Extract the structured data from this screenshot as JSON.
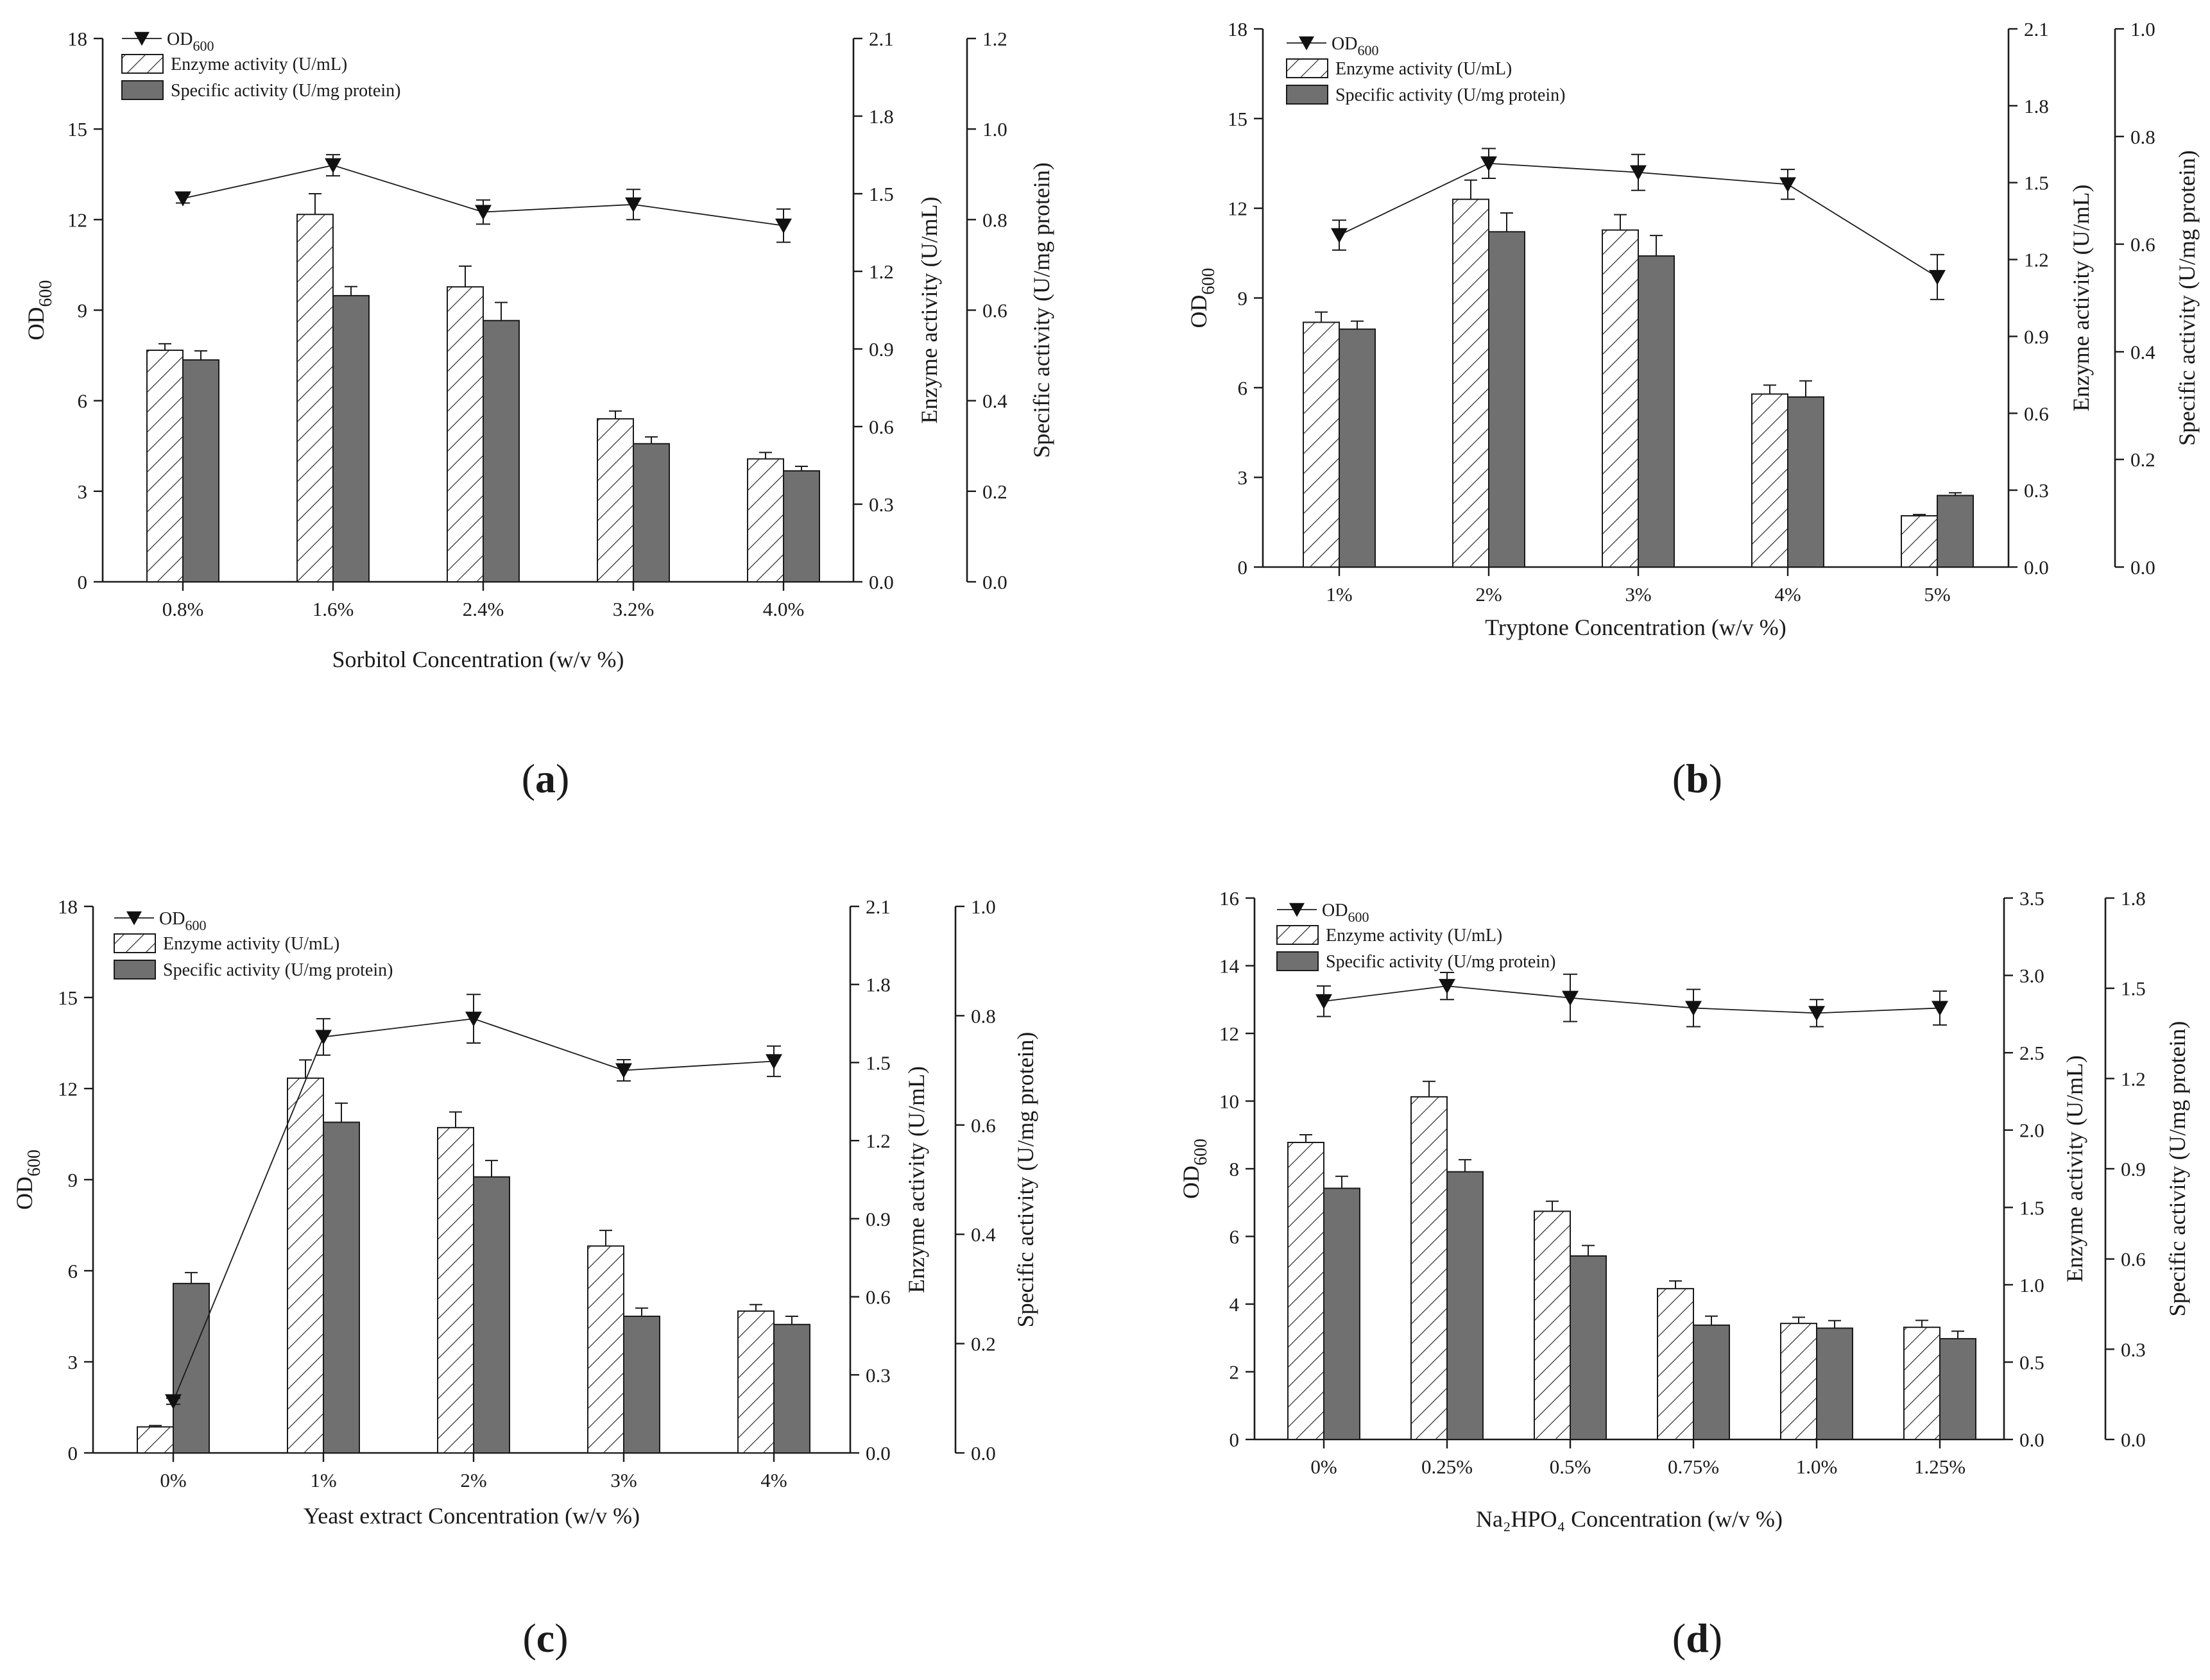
{
  "colors": {
    "axis": "#1a1a1a",
    "specific_bar": "#707070",
    "marker": "#111111"
  },
  "chart_data": [
    {
      "id": "a",
      "type": "bar",
      "panel_label": "(a)",
      "panel_letter": "a",
      "xlabel": "Sorbitol Concentration (w/v %)",
      "categories": [
        "0.8%",
        "1.6%",
        "2.4%",
        "3.2%",
        "4.0%"
      ],
      "legend": {
        "od": "OD",
        "od_sub": "600",
        "enzyme": "Enzyme activity (U/mL)",
        "specific": "Specific activity (U/mg protein)"
      },
      "axes": {
        "left": {
          "label": "OD",
          "label_sub": "600",
          "ylim": [
            0,
            18
          ],
          "ticks": [
            "0",
            "3",
            "6",
            "9",
            "12",
            "15",
            "18"
          ]
        },
        "right1": {
          "label": "Enzyme activity (U/mL)",
          "ylim": [
            0,
            2.1
          ],
          "ticks": [
            "0.0",
            "0.3",
            "0.6",
            "0.9",
            "1.2",
            "1.5",
            "1.8",
            "2.1"
          ]
        },
        "right2": {
          "label": "Specific activity (U/mg protein)",
          "ylim": [
            0,
            1.2
          ],
          "ticks": [
            "0.0",
            "0.2",
            "0.4",
            "0.6",
            "0.8",
            "1.0",
            "1.2"
          ]
        }
      },
      "series": [
        {
          "name": "Enzyme activity (U/mL)",
          "kind": "bar",
          "axis": "right1",
          "values": [
            0.895,
            1.42,
            1.14,
            0.63,
            0.475
          ],
          "errors": [
            0.025,
            0.08,
            0.08,
            0.03,
            0.025
          ]
        },
        {
          "name": "Specific activity (U/mg protein)",
          "kind": "bar",
          "axis": "right2",
          "values": [
            0.49,
            0.632,
            0.577,
            0.305,
            0.245
          ],
          "errors": [
            0.02,
            0.02,
            0.04,
            0.015,
            0.01
          ]
        },
        {
          "name": "OD600",
          "kind": "line",
          "axis": "left",
          "values": [
            12.7,
            13.8,
            12.25,
            12.5,
            11.8
          ],
          "errors": [
            0.15,
            0.35,
            0.4,
            0.5,
            0.55
          ]
        }
      ]
    },
    {
      "id": "b",
      "type": "bar",
      "panel_label": "(b)",
      "panel_letter": "b",
      "xlabel": "Tryptone Concentration (w/v %)",
      "categories": [
        "1%",
        "2%",
        "3%",
        "4%",
        "5%"
      ],
      "legend": {
        "od": "OD",
        "od_sub": "600",
        "enzyme": "Enzyme activity (U/mL)",
        "specific": "Specific activity (U/mg protein)"
      },
      "axes": {
        "left": {
          "label": "OD",
          "label_sub": "600",
          "ylim": [
            0,
            18
          ],
          "ticks": [
            "0",
            "3",
            "6",
            "9",
            "12",
            "15",
            "18"
          ]
        },
        "right1": {
          "label": "Enzyme activity (U/mL)",
          "ylim": [
            0,
            2.1
          ],
          "ticks": [
            "0.0",
            "0.3",
            "0.6",
            "0.9",
            "1.2",
            "1.5",
            "1.8",
            "2.1"
          ]
        },
        "right2": {
          "label": "Specific activity (U/mg protein)",
          "ylim": [
            0,
            1.0
          ],
          "ticks": [
            "0.0",
            "0.2",
            "0.4",
            "0.6",
            "0.8",
            "1.0"
          ]
        }
      },
      "series": [
        {
          "name": "Enzyme activity (U/mL)",
          "kind": "bar",
          "axis": "right1",
          "values": [
            0.955,
            1.435,
            1.315,
            0.675,
            0.2
          ],
          "errors": [
            0.04,
            0.075,
            0.06,
            0.035,
            0.005
          ]
        },
        {
          "name": "Specific activity (U/mg protein)",
          "kind": "bar",
          "axis": "right2",
          "values": [
            0.442,
            0.623,
            0.578,
            0.316,
            0.133
          ],
          "errors": [
            0.015,
            0.035,
            0.038,
            0.03,
            0.005
          ]
        },
        {
          "name": "OD600",
          "kind": "line",
          "axis": "left",
          "values": [
            11.1,
            13.5,
            13.2,
            12.8,
            9.7
          ],
          "errors": [
            0.5,
            0.5,
            0.6,
            0.5,
            0.75
          ]
        }
      ]
    },
    {
      "id": "c",
      "type": "bar",
      "panel_label": "(c)",
      "panel_letter": "c",
      "xlabel": "Yeast extract Concentration (w/v %)",
      "categories": [
        "0%",
        "1%",
        "2%",
        "3%",
        "4%"
      ],
      "legend": {
        "od": "OD",
        "od_sub": "600",
        "enzyme": "Enzyme activity (U/mL)",
        "specific": "Specific activity (U/mg protein)"
      },
      "axes": {
        "left": {
          "label": "OD",
          "label_sub": "600",
          "ylim": [
            0,
            18
          ],
          "ticks": [
            "0",
            "3",
            "6",
            "9",
            "12",
            "15",
            "18"
          ]
        },
        "right1": {
          "label": "Enzyme activity (U/mL)",
          "ylim": [
            0,
            2.1
          ],
          "ticks": [
            "0.0",
            "0.3",
            "0.6",
            "0.9",
            "1.2",
            "1.5",
            "1.8",
            "2.1"
          ]
        },
        "right2": {
          "label": "Specific activity (U/mg protein)",
          "ylim": [
            0,
            1.0
          ],
          "ticks": [
            "0.0",
            "0.2",
            "0.4",
            "0.6",
            "0.8",
            "1.0"
          ]
        }
      },
      "series": [
        {
          "name": "Enzyme activity (U/mL)",
          "kind": "bar",
          "axis": "right1",
          "values": [
            0.1,
            1.44,
            1.25,
            0.795,
            0.545
          ],
          "errors": [
            0.005,
            0.07,
            0.06,
            0.06,
            0.025
          ]
        },
        {
          "name": "Specific activity (U/mg protein)",
          "kind": "bar",
          "axis": "right2",
          "values": [
            0.31,
            0.605,
            0.505,
            0.25,
            0.235
          ],
          "errors": [
            0.02,
            0.035,
            0.03,
            0.015,
            0.015
          ]
        },
        {
          "name": "OD600",
          "kind": "line",
          "axis": "left",
          "values": [
            1.7,
            13.7,
            14.3,
            12.6,
            12.9
          ],
          "errors": [
            0.1,
            0.6,
            0.8,
            0.35,
            0.5
          ]
        }
      ]
    },
    {
      "id": "d",
      "type": "bar",
      "panel_label": "(d)",
      "panel_letter": "d",
      "xlabel": "Na₂HPO₄ Concentration (w/v %)",
      "categories": [
        "0%",
        "0.25%",
        "0.5%",
        "0.75%",
        "1.0%",
        "1.25%"
      ],
      "legend": {
        "od": "OD",
        "od_sub": "600",
        "enzyme": "Enzyme activity (U/mL)",
        "specific": "Specific activity (U/mg protein)"
      },
      "axes": {
        "left": {
          "label": "OD",
          "label_sub": "600",
          "ylim": [
            0,
            16
          ],
          "ticks": [
            "0",
            "2",
            "4",
            "6",
            "8",
            "10",
            "12",
            "14",
            "16"
          ]
        },
        "right1": {
          "label": "Enzyme activity (U/mL)",
          "ylim": [
            0,
            3.5
          ],
          "ticks": [
            "0.0",
            "0.5",
            "1.0",
            "1.5",
            "2.0",
            "2.5",
            "3.0",
            "3.5"
          ]
        },
        "right2": {
          "label": "Specific activity (U/mg protein)",
          "ylim": [
            0,
            1.8
          ],
          "ticks": [
            "0.0",
            "0.3",
            "0.6",
            "0.9",
            "1.2",
            "1.5",
            "1.8"
          ]
        }
      },
      "series": [
        {
          "name": "Enzyme activity (U/mL)",
          "kind": "bar",
          "axis": "right1",
          "values": [
            1.92,
            2.215,
            1.475,
            0.975,
            0.75,
            0.725
          ],
          "errors": [
            0.05,
            0.1,
            0.065,
            0.05,
            0.04,
            0.045
          ]
        },
        {
          "name": "Specific activity (U/mg protein)",
          "kind": "bar",
          "axis": "right2",
          "values": [
            0.835,
            0.89,
            0.61,
            0.38,
            0.37,
            0.335
          ],
          "errors": [
            0.04,
            0.04,
            0.035,
            0.03,
            0.025,
            0.025
          ]
        },
        {
          "name": "OD600",
          "kind": "line",
          "axis": "left",
          "values": [
            12.95,
            13.4,
            13.05,
            12.75,
            12.6,
            12.75
          ],
          "errors": [
            0.45,
            0.4,
            0.7,
            0.55,
            0.4,
            0.5
          ]
        }
      ]
    }
  ]
}
